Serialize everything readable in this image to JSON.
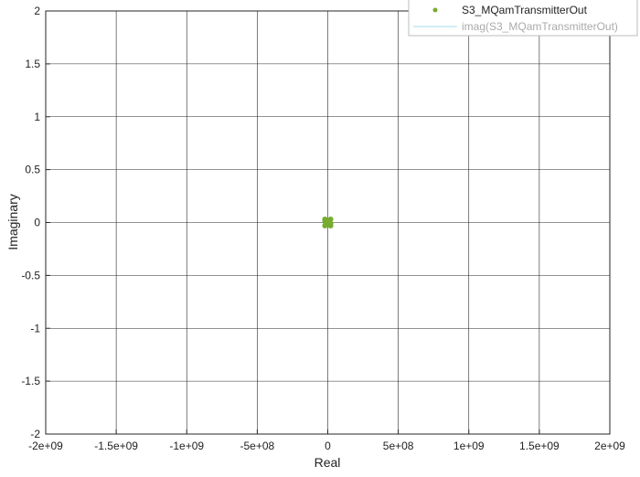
{
  "chart_data": {
    "type": "scatter",
    "xlabel": "Real",
    "ylabel": "Imaginary",
    "xlim": [
      -2000000000,
      2000000000
    ],
    "ylim": [
      -2,
      2
    ],
    "grid": true,
    "legend_position": "top-right",
    "x_ticks": [
      {
        "value": -2000000000,
        "label": "-2e+09"
      },
      {
        "value": -1500000000,
        "label": "-1.5e+09"
      },
      {
        "value": -1000000000,
        "label": "-1e+09"
      },
      {
        "value": -500000000,
        "label": "-5e+08"
      },
      {
        "value": 0,
        "label": "0"
      },
      {
        "value": 500000000,
        "label": "5e+08"
      },
      {
        "value": 1000000000,
        "label": "1e+09"
      },
      {
        "value": 1500000000,
        "label": "1.5e+09"
      },
      {
        "value": 2000000000,
        "label": "2e+09"
      }
    ],
    "y_ticks": [
      {
        "value": 2,
        "label": "2"
      },
      {
        "value": 1.5,
        "label": "1.5"
      },
      {
        "value": 1,
        "label": "1"
      },
      {
        "value": 0.5,
        "label": "0.5"
      },
      {
        "value": 0,
        "label": "0"
      },
      {
        "value": -0.5,
        "label": "-0.5"
      },
      {
        "value": -1,
        "label": "-1"
      },
      {
        "value": -1.5,
        "label": "-1.5"
      },
      {
        "value": -2,
        "label": "-2"
      }
    ],
    "series": [
      {
        "name": "S3_MQamTransmitterOut",
        "marker": "dot",
        "color": "#77ac30",
        "points": [
          {
            "x": -20000000,
            "y": 0.03
          },
          {
            "x": -20000000,
            "y": -0.03
          },
          {
            "x": 20000000,
            "y": 0.03
          },
          {
            "x": 20000000,
            "y": -0.03
          },
          {
            "x": -8000000,
            "y": 0.015
          },
          {
            "x": -8000000,
            "y": -0.015
          },
          {
            "x": 8000000,
            "y": 0.015
          },
          {
            "x": 8000000,
            "y": -0.015
          },
          {
            "x": -20000000,
            "y": 0.01
          },
          {
            "x": 20000000,
            "y": -0.01
          },
          {
            "x": -12000000,
            "y": 0.0
          },
          {
            "x": 12000000,
            "y": 0.0
          },
          {
            "x": -3000000,
            "y": 0.02
          },
          {
            "x": 3000000,
            "y": -0.02
          }
        ]
      },
      {
        "name": "imag(S3_MQamTransmitterOut)",
        "marker": "line",
        "color": "#a6dcec",
        "points": []
      }
    ]
  }
}
